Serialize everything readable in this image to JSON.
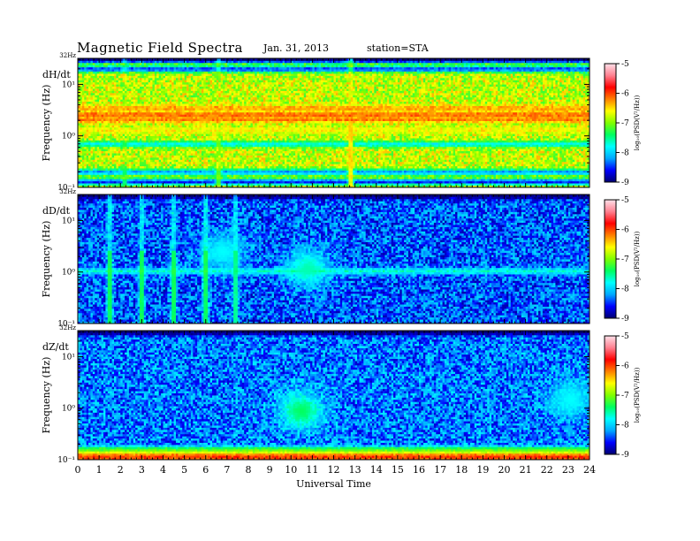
{
  "header": {
    "title": "Magnetic  Field  Spectra",
    "date": "Jan. 31, 2013",
    "station": "station=STA"
  },
  "colorscale": {
    "ticks": [
      "-5",
      "-6",
      "-7",
      "-8",
      "-9"
    ],
    "label": "log₁₀(PSD(V²/Hz))",
    "range": [
      -9,
      -5
    ],
    "colors": [
      "#000070",
      "#0000ff",
      "#00a8ff",
      "#00ffff",
      "#00ff60",
      "#80ff00",
      "#ffff00",
      "#ff8000",
      "#ff0000",
      "#ff8090",
      "#ffe0e8"
    ]
  },
  "chart_data": [
    {
      "type": "heatmap",
      "panel_label": "dH/dt",
      "ylabel": "Frequency (Hz)",
      "yticks": [
        "32Hz",
        "10¹",
        "10⁰",
        "10⁻¹"
      ],
      "y_scale": "log",
      "ylim": [
        0.1,
        32
      ],
      "xlim": [
        0,
        24
      ],
      "background_log_psd": -6.8,
      "features": [
        {
          "type": "band",
          "freq_hz": 30,
          "log_psd": -9
        },
        {
          "type": "band",
          "freq_hz": 20,
          "log_psd": -8.5
        },
        {
          "type": "band",
          "freq_hz": 3.5,
          "log_psd": -6.3
        },
        {
          "type": "band",
          "freq_hz": 2.6,
          "log_psd": -6.1
        },
        {
          "type": "band",
          "freq_hz": 2.1,
          "log_psd": -6.2
        },
        {
          "type": "band",
          "freq_hz": 1.3,
          "log_psd": -6.6
        },
        {
          "type": "band",
          "freq_hz": 0.7,
          "log_psd": -7.8
        },
        {
          "type": "band",
          "freq_hz": 0.2,
          "log_psd": -8.2
        },
        {
          "type": "band",
          "freq_hz": 0.13,
          "log_psd": -8.6
        },
        {
          "type": "burst",
          "time_h": 12.8,
          "log_psd": -6.4
        },
        {
          "type": "burst",
          "time_h": 6.6,
          "log_psd": -7.0
        },
        {
          "type": "burst",
          "time_h": 2.2,
          "log_psd": -7.3
        }
      ]
    },
    {
      "type": "heatmap",
      "panel_label": "dD/dt",
      "ylabel": "Frequency (Hz)",
      "yticks": [
        "32Hz",
        "10¹",
        "10⁰",
        "10⁻¹"
      ],
      "y_scale": "log",
      "ylim": [
        0.1,
        32
      ],
      "xlim": [
        0,
        24
      ],
      "background_log_psd": -8.4,
      "features": [
        {
          "type": "band",
          "freq_hz": 30,
          "log_psd": -9
        },
        {
          "type": "band",
          "freq_hz": 1.05,
          "log_psd": -7.7
        },
        {
          "type": "blob",
          "time_h": 10.8,
          "freq_hz": 1.2,
          "log_psd": -7.6
        },
        {
          "type": "blob",
          "time_h": 6.8,
          "freq_hz": 2.5,
          "log_psd": -7.8
        },
        {
          "type": "burst",
          "time_h": 1.5,
          "log_psd": -7.2
        },
        {
          "type": "burst",
          "time_h": 3.0,
          "log_psd": -7.2
        },
        {
          "type": "burst",
          "time_h": 4.5,
          "log_psd": -7.2
        },
        {
          "type": "burst",
          "time_h": 6.0,
          "log_psd": -7.2
        },
        {
          "type": "burst",
          "time_h": 7.4,
          "log_psd": -7.4
        }
      ]
    },
    {
      "type": "heatmap",
      "panel_label": "dZ/dt",
      "ylabel": "Frequency (Hz)",
      "yticks": [
        "32Hz",
        "10¹",
        "10⁰",
        "10⁻¹"
      ],
      "y_scale": "log",
      "ylim": [
        0.1,
        32
      ],
      "xlim": [
        0,
        24
      ],
      "background_log_psd": -8.3,
      "features": [
        {
          "type": "band",
          "freq_hz": 30,
          "log_psd": -9
        },
        {
          "type": "blob",
          "time_h": 10.5,
          "freq_hz": 0.9,
          "log_psd": -7.4
        },
        {
          "type": "blob",
          "time_h": 23.1,
          "freq_hz": 1.5,
          "log_psd": -7.8
        },
        {
          "type": "band",
          "freq_hz": 0.16,
          "log_psd": -7.2
        },
        {
          "type": "band",
          "freq_hz": 0.13,
          "log_psd": -6.4
        },
        {
          "type": "band",
          "freq_hz": 0.11,
          "log_psd": -5.8
        }
      ]
    }
  ],
  "xaxis": {
    "label": "Universal Time",
    "ticks": [
      "0",
      "1",
      "2",
      "3",
      "4",
      "5",
      "6",
      "7",
      "8",
      "9",
      "10",
      "11",
      "12",
      "13",
      "14",
      "15",
      "16",
      "17",
      "18",
      "19",
      "20",
      "21",
      "22",
      "23",
      "24"
    ]
  }
}
